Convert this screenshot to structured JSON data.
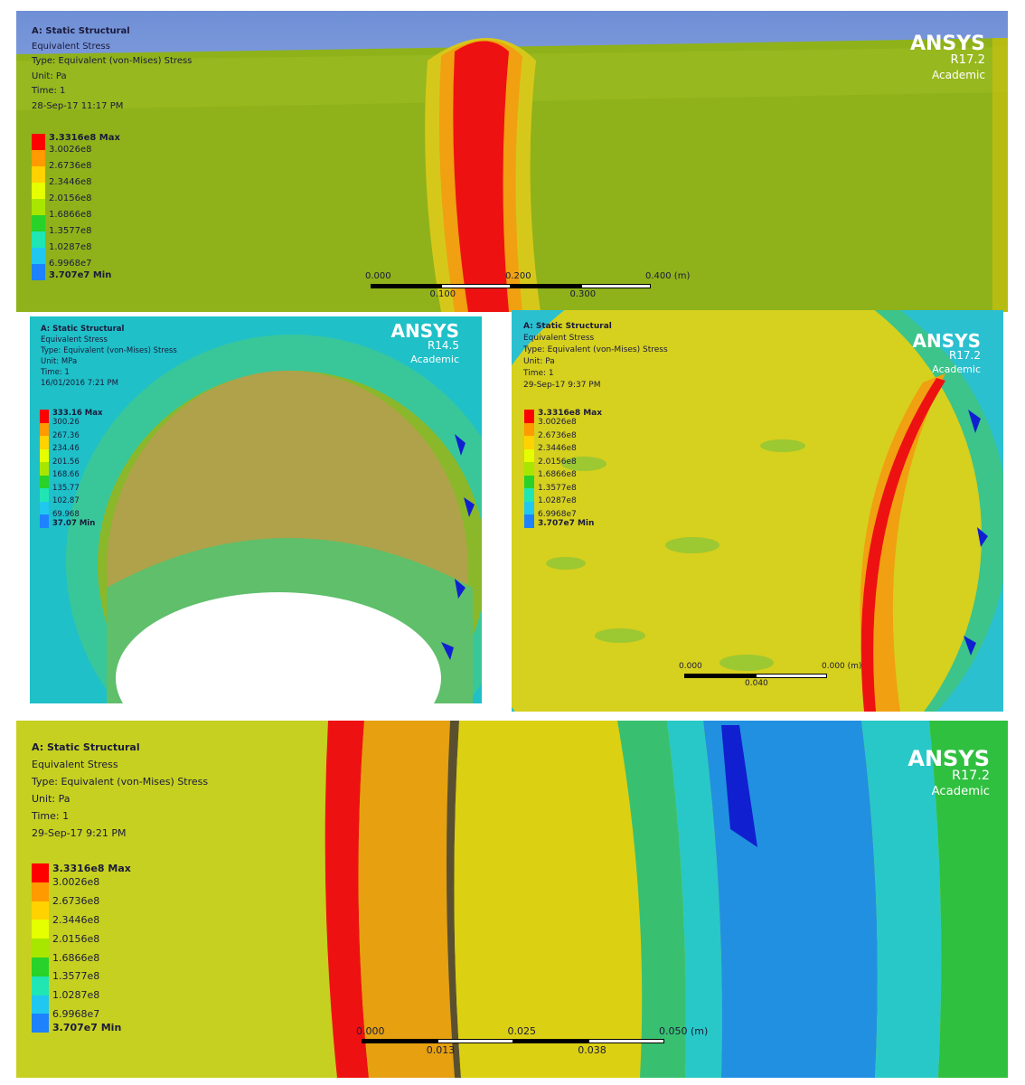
{
  "panels": [
    {
      "header": [
        "A: Static Structural",
        "Equivalent Stress",
        "Type: Equivalent (von-Mises) Stress",
        "Unit: Pa",
        "Time: 1",
        "28-Sep-17 11:17 PM"
      ],
      "legend": [
        "3.3316e8 Max",
        "3.0026e8",
        "2.6736e8",
        "2.3446e8",
        "2.0156e8",
        "1.6866e8",
        "1.3577e8",
        "1.0287e8",
        "6.9968e7",
        "3.707e7 Min"
      ],
      "logo": {
        "name": "ANSYS",
        "version": "R17.2",
        "edition": "Academic"
      },
      "scale": {
        "top": [
          "0.000",
          "0.200",
          "0.400 (m)"
        ],
        "bottom": [
          "0.100",
          "0.300"
        ]
      }
    },
    {
      "header": [
        "A: Static Structural",
        "Equivalent Stress",
        "Type: Equivalent (von-Mises) Stress",
        "Unit: MPa",
        "Time: 1",
        "16/01/2016 7:21 PM"
      ],
      "legend": [
        "333.16 Max",
        "300.26",
        "267.36",
        "234.46",
        "201.56",
        "168.66",
        "135.77",
        "102.87",
        "69.968",
        "37.07 Min"
      ],
      "logo": {
        "name": "ANSYS",
        "version": "R14.5",
        "edition": "Academic"
      }
    },
    {
      "header": [
        "A: Static Structural",
        "Equivalent Stress",
        "Type: Equivalent (von-Mises) Stress",
        "Unit: Pa",
        "Time: 1",
        "29-Sep-17 9:37 PM"
      ],
      "legend": [
        "3.3316e8 Max",
        "3.0026e8",
        "2.6736e8",
        "2.3446e8",
        "2.0156e8",
        "1.6866e8",
        "1.3577e8",
        "1.0287e8",
        "6.9968e7",
        "3.707e7 Min"
      ],
      "logo": {
        "name": "ANSYS",
        "version": "R17.2",
        "edition": "Academic"
      },
      "scale": {
        "top": [
          "0.000",
          "0.000 (m)"
        ],
        "bottom": [
          "0.040"
        ]
      }
    },
    {
      "header": [
        "A: Static Structural",
        "Equivalent Stress",
        "Type: Equivalent (von-Mises) Stress",
        "Unit: Pa",
        "Time: 1",
        "29-Sep-17 9:21 PM"
      ],
      "legend": [
        "3.3316e8 Max",
        "3.0026e8",
        "2.6736e8",
        "2.3446e8",
        "2.0156e8",
        "1.6866e8",
        "1.3577e8",
        "1.0287e8",
        "6.9968e7",
        "3.707e7 Min"
      ],
      "logo": {
        "name": "ANSYS",
        "version": "R17.2",
        "edition": "Academic"
      },
      "scale": {
        "top": [
          "0.000",
          "0.025",
          "0.050 (m)"
        ],
        "bottom": [
          "0.013",
          "0.038"
        ]
      }
    }
  ]
}
